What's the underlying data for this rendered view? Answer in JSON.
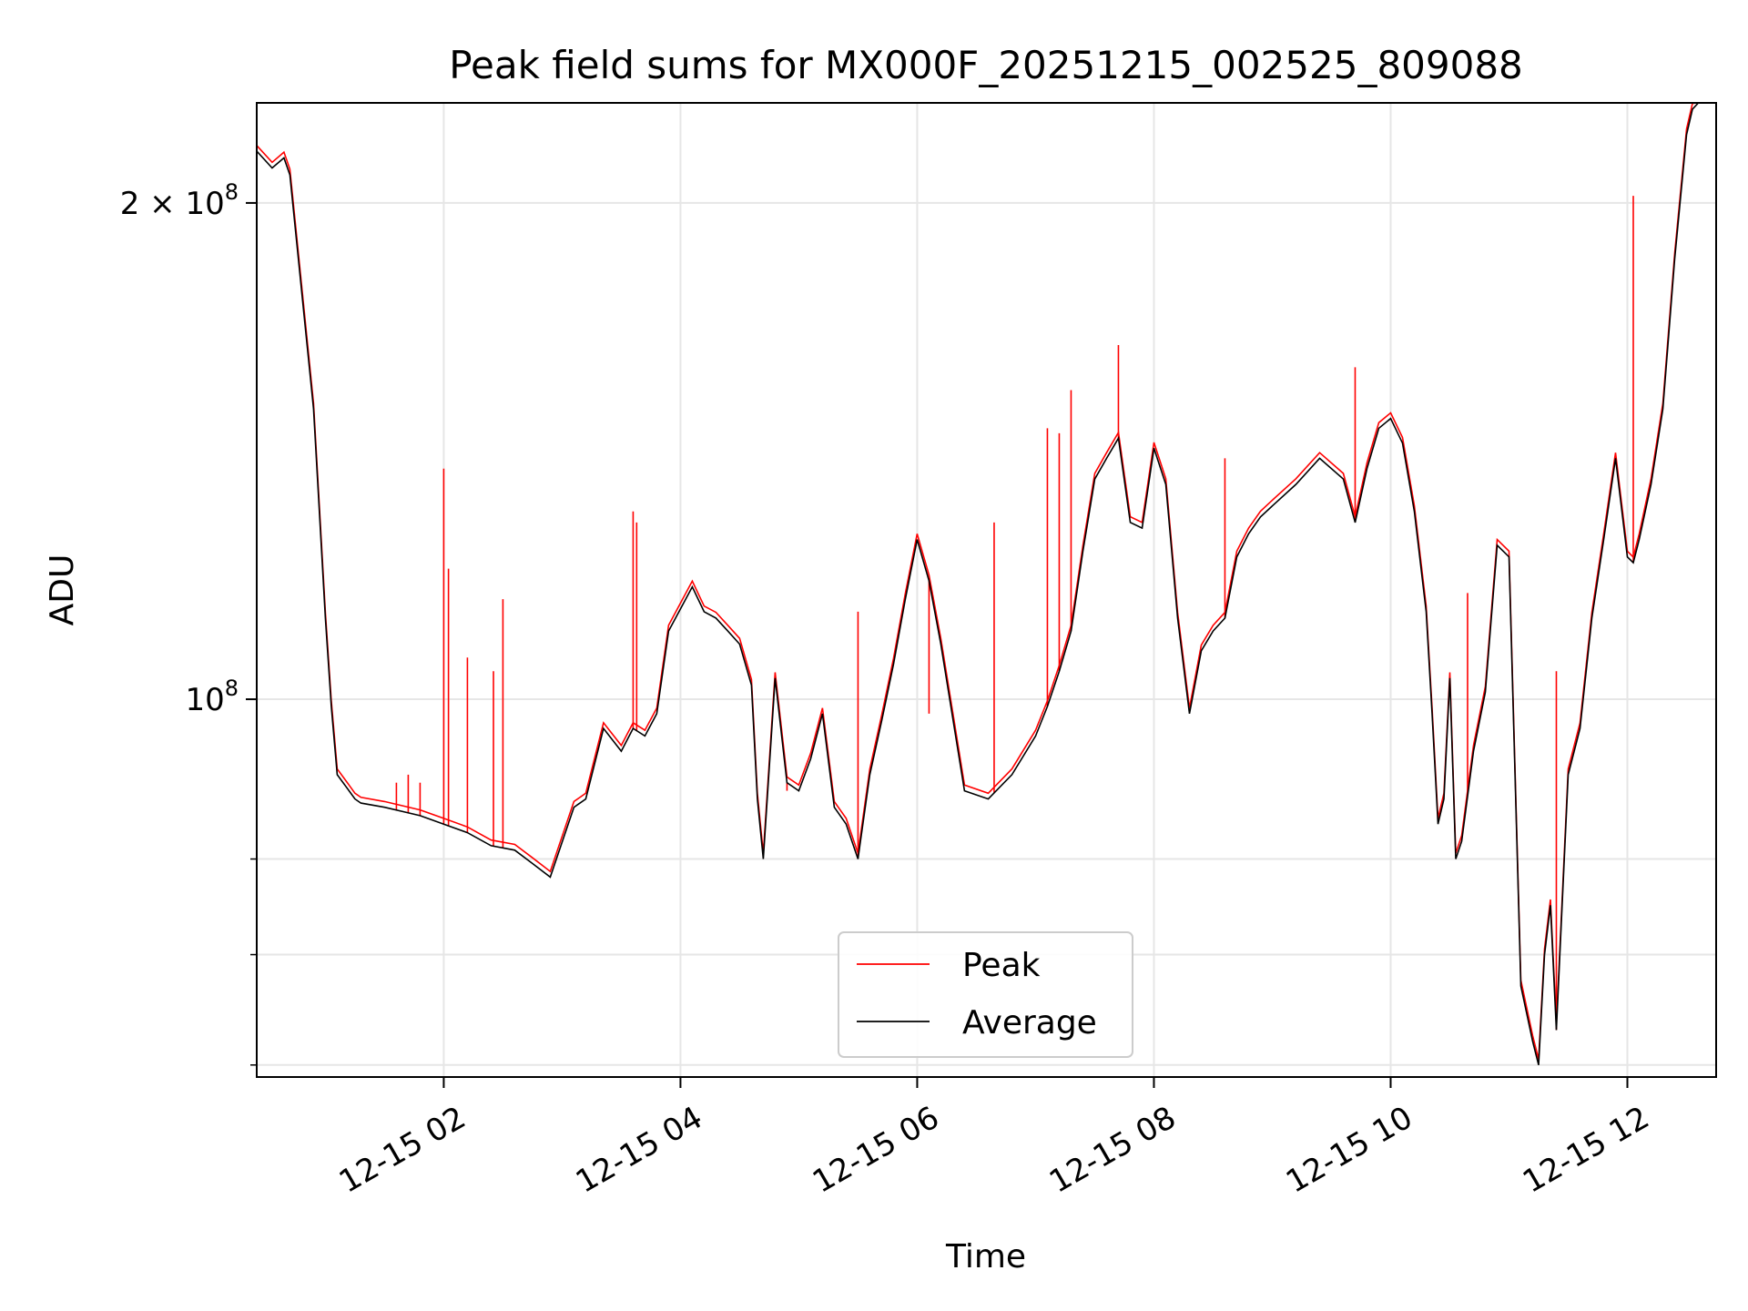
{
  "chart_data": {
    "type": "line",
    "title": "Peak field sums for MX000F_20251215_002525_809088",
    "xlabel": "Time",
    "ylabel": "ADU",
    "yscale": "log",
    "xlim_hours": [
      0.42,
      12.75
    ],
    "ylim": [
      59000000,
      230000000
    ],
    "x_ticks": [
      {
        "hour": 2,
        "label": "12-15 02"
      },
      {
        "hour": 4,
        "label": "12-15 04"
      },
      {
        "hour": 6,
        "label": "12-15 06"
      },
      {
        "hour": 8,
        "label": "12-15 08"
      },
      {
        "hour": 10,
        "label": "12-15 10"
      },
      {
        "hour": 12,
        "label": "12-15 12"
      }
    ],
    "y_major_ticks": [
      {
        "value": 100000000,
        "base": "10",
        "exp": "8",
        "coef": ""
      },
      {
        "value": 200000000,
        "base": "10",
        "exp": "8",
        "coef": "2 × "
      }
    ],
    "y_minor_ticks": [
      60000000,
      70000000,
      80000000
    ],
    "grid": true,
    "legend": {
      "position": "lower-center",
      "entries": [
        "Peak",
        "Average"
      ]
    },
    "colors": {
      "peak": "#ff0000",
      "average": "#000000"
    },
    "series": [
      {
        "name": "Average",
        "x": [
          0.42,
          0.55,
          0.65,
          0.7,
          0.9,
          1.0,
          1.05,
          1.1,
          1.2,
          1.25,
          1.3,
          1.5,
          1.8,
          2.0,
          2.2,
          2.4,
          2.6,
          2.75,
          2.9,
          3.1,
          3.2,
          3.35,
          3.5,
          3.6,
          3.7,
          3.8,
          3.9,
          4.1,
          4.2,
          4.3,
          4.4,
          4.5,
          4.6,
          4.65,
          4.7,
          4.8,
          4.9,
          5.0,
          5.1,
          5.2,
          5.3,
          5.4,
          5.5,
          5.6,
          5.7,
          5.8,
          5.9,
          6.0,
          6.1,
          6.2,
          6.4,
          6.6,
          6.8,
          7.0,
          7.1,
          7.2,
          7.3,
          7.4,
          7.5,
          7.6,
          7.7,
          7.8,
          7.9,
          8.0,
          8.1,
          8.2,
          8.3,
          8.4,
          8.5,
          8.6,
          8.7,
          8.8,
          8.9,
          9.0,
          9.2,
          9.4,
          9.6,
          9.7,
          9.8,
          9.9,
          10.0,
          10.1,
          10.2,
          10.3,
          10.35,
          10.4,
          10.45,
          10.5,
          10.55,
          10.6,
          10.7,
          10.8,
          10.9,
          11.0,
          11.1,
          11.2,
          11.25,
          11.3,
          11.35,
          11.4,
          11.5,
          11.6,
          11.7,
          11.8,
          11.9,
          12.0,
          12.05,
          12.1,
          12.2,
          12.3,
          12.4,
          12.5,
          12.55,
          12.6,
          12.65,
          12.7
        ],
        "values": [
          215000000,
          210000000,
          213000000,
          208000000,
          150000000,
          112000000,
          99000000,
          90000000,
          88000000,
          87000000,
          86500000,
          86000000,
          85000000,
          84000000,
          83000000,
          81500000,
          81000000,
          79500000,
          78000000,
          86000000,
          87000000,
          96000000,
          93000000,
          96000000,
          95000000,
          98000000,
          110000000,
          117000000,
          113000000,
          112000000,
          110000000,
          108000000,
          102000000,
          87000000,
          80000000,
          103000000,
          89000000,
          88000000,
          92000000,
          98000000,
          86000000,
          84000000,
          80000000,
          90000000,
          97000000,
          105000000,
          115000000,
          125000000,
          118000000,
          108000000,
          88000000,
          87000000,
          90000000,
          95000000,
          99000000,
          104000000,
          110000000,
          123000000,
          136000000,
          140000000,
          144000000,
          128000000,
          127000000,
          142000000,
          135000000,
          112000000,
          98000000,
          107000000,
          110000000,
          112000000,
          122000000,
          126000000,
          129000000,
          131000000,
          135000000,
          140000000,
          136000000,
          128000000,
          138000000,
          146000000,
          148000000,
          143000000,
          130000000,
          113000000,
          98000000,
          84000000,
          87000000,
          103000000,
          80000000,
          82000000,
          93000000,
          101000000,
          124000000,
          122000000,
          67000000,
          62000000,
          60000000,
          70000000,
          75000000,
          63000000,
          90000000,
          96000000,
          112000000,
          125000000,
          140000000,
          122000000,
          121000000,
          125000000,
          135000000,
          150000000,
          185000000,
          220000000,
          228000000,
          230000000,
          230000000,
          230000000
        ]
      },
      {
        "name": "Peak",
        "spikes": [
          {
            "hour": 1.6,
            "value": 89000000
          },
          {
            "hour": 1.7,
            "value": 90000000
          },
          {
            "hour": 1.8,
            "value": 89000000
          },
          {
            "hour": 2.0,
            "value": 138000000
          },
          {
            "hour": 2.04,
            "value": 120000000
          },
          {
            "hour": 2.2,
            "value": 106000000
          },
          {
            "hour": 2.42,
            "value": 104000000
          },
          {
            "hour": 2.5,
            "value": 115000000
          },
          {
            "hour": 3.6,
            "value": 130000000
          },
          {
            "hour": 3.63,
            "value": 128000000
          },
          {
            "hour": 4.9,
            "value": 88000000
          },
          {
            "hour": 5.5,
            "value": 113000000
          },
          {
            "hour": 6.1,
            "value": 98000000
          },
          {
            "hour": 6.65,
            "value": 128000000
          },
          {
            "hour": 7.1,
            "value": 146000000
          },
          {
            "hour": 7.2,
            "value": 145000000
          },
          {
            "hour": 7.3,
            "value": 154000000
          },
          {
            "hour": 7.7,
            "value": 164000000
          },
          {
            "hour": 8.6,
            "value": 140000000
          },
          {
            "hour": 9.7,
            "value": 159000000
          },
          {
            "hour": 10.65,
            "value": 116000000
          },
          {
            "hour": 11.4,
            "value": 104000000
          },
          {
            "hour": 12.05,
            "value": 202000000
          }
        ]
      }
    ]
  }
}
